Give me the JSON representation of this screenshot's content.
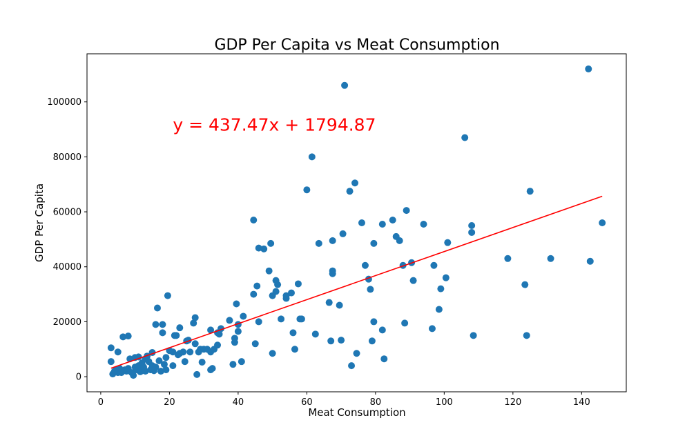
{
  "chart_data": {
    "type": "scatter",
    "title": "GDP Per Capita vs Meat Consumption",
    "xlabel": "Meat Consumption",
    "ylabel": "GDP Per Capita",
    "xlim": [
      -4,
      153
    ],
    "ylim": [
      -5500,
      117500
    ],
    "xticks": [
      0,
      20,
      40,
      60,
      80,
      100,
      120,
      140
    ],
    "yticks": [
      0,
      20000,
      40000,
      60000,
      80000,
      100000
    ],
    "grid": false,
    "legend": "none",
    "point_color": "#1f77b4",
    "line_color": "#ff0000",
    "annotation": {
      "text": "y = 437.47x + 1794.87",
      "color": "#ff0000",
      "x": 21,
      "y": 89500
    },
    "regression": {
      "slope": 437.47,
      "intercept": 1794.87,
      "x_range": [
        3,
        146
      ]
    },
    "points": [
      [
        3,
        10500
      ],
      [
        3,
        5500
      ],
      [
        3.5,
        1000
      ],
      [
        4,
        2000
      ],
      [
        4.5,
        2500
      ],
      [
        5,
        1500
      ],
      [
        5,
        9000
      ],
      [
        5.5,
        3000
      ],
      [
        6,
        1500
      ],
      [
        6.5,
        14500
      ],
      [
        7,
        2500
      ],
      [
        7.5,
        2000
      ],
      [
        8,
        3000
      ],
      [
        8,
        14800
      ],
      [
        8.5,
        6500
      ],
      [
        9,
        1500
      ],
      [
        9.5,
        500
      ],
      [
        10,
        3500
      ],
      [
        10,
        7000
      ],
      [
        10.5,
        2500
      ],
      [
        11,
        7200
      ],
      [
        11,
        4000
      ],
      [
        11.5,
        1800
      ],
      [
        12,
        5000
      ],
      [
        12.5,
        3500
      ],
      [
        13,
        6500
      ],
      [
        13,
        2000
      ],
      [
        13.5,
        7500
      ],
      [
        14,
        5500
      ],
      [
        14.5,
        2500
      ],
      [
        15,
        8800
      ],
      [
        15,
        4000
      ],
      [
        15.5,
        2200
      ],
      [
        16,
        3500
      ],
      [
        16,
        19000
      ],
      [
        16.5,
        25000
      ],
      [
        17,
        5800
      ],
      [
        17.5,
        2000
      ],
      [
        18,
        19000
      ],
      [
        18,
        16000
      ],
      [
        18.5,
        4500
      ],
      [
        19,
        7000
      ],
      [
        19,
        2500
      ],
      [
        19.5,
        29500
      ],
      [
        20,
        9500
      ],
      [
        21,
        4000
      ],
      [
        21,
        9000
      ],
      [
        21.5,
        15000
      ],
      [
        22,
        15000
      ],
      [
        22.5,
        8000
      ],
      [
        23,
        17800
      ],
      [
        23,
        8500
      ],
      [
        24,
        9000
      ],
      [
        24.5,
        5500
      ],
      [
        25,
        13000
      ],
      [
        25.5,
        13300
      ],
      [
        26,
        9000
      ],
      [
        27,
        19500
      ],
      [
        27.5,
        21500
      ],
      [
        27.5,
        12000
      ],
      [
        28,
        800
      ],
      [
        28.5,
        9000
      ],
      [
        29,
        10000
      ],
      [
        29.5,
        5300
      ],
      [
        30,
        10000
      ],
      [
        31,
        10000
      ],
      [
        32,
        9000
      ],
      [
        32,
        17000
      ],
      [
        32,
        2500
      ],
      [
        32.5,
        3000
      ],
      [
        33,
        10000
      ],
      [
        34,
        11500
      ],
      [
        34,
        16000
      ],
      [
        34.5,
        15500
      ],
      [
        35,
        17500
      ],
      [
        37.5,
        20500
      ],
      [
        38.5,
        4500
      ],
      [
        39,
        14000
      ],
      [
        39,
        12500
      ],
      [
        39.5,
        26500
      ],
      [
        40,
        16500
      ],
      [
        40,
        19000
      ],
      [
        41,
        5500
      ],
      [
        41.5,
        22000
      ],
      [
        44.5,
        57000
      ],
      [
        44.5,
        30000
      ],
      [
        45,
        12000
      ],
      [
        45.5,
        33000
      ],
      [
        46,
        46800
      ],
      [
        46,
        20000
      ],
      [
        47.5,
        46500
      ],
      [
        49,
        38500
      ],
      [
        49.5,
        48500
      ],
      [
        50,
        29500
      ],
      [
        50,
        8500
      ],
      [
        51,
        35000
      ],
      [
        51,
        31000
      ],
      [
        51.5,
        33500
      ],
      [
        52.5,
        21000
      ],
      [
        54,
        28500
      ],
      [
        54,
        29500
      ],
      [
        55.5,
        30500
      ],
      [
        56,
        16000
      ],
      [
        56.5,
        10000
      ],
      [
        57.5,
        33800
      ],
      [
        58,
        21000
      ],
      [
        58.5,
        21000
      ],
      [
        60,
        68000
      ],
      [
        61.5,
        80000
      ],
      [
        62.5,
        15500
      ],
      [
        63.5,
        48500
      ],
      [
        66.5,
        27000
      ],
      [
        67,
        13000
      ],
      [
        67.5,
        49500
      ],
      [
        67.5,
        38500
      ],
      [
        67.5,
        37500
      ],
      [
        69.5,
        26000
      ],
      [
        70,
        13300
      ],
      [
        70.5,
        52000
      ],
      [
        71,
        106000
      ],
      [
        72.5,
        67500
      ],
      [
        73,
        4000
      ],
      [
        74,
        70500
      ],
      [
        74.5,
        8500
      ],
      [
        76,
        56000
      ],
      [
        77,
        40500
      ],
      [
        78,
        35500
      ],
      [
        78.5,
        31800
      ],
      [
        79,
        13000
      ],
      [
        79.5,
        20000
      ],
      [
        79.5,
        48500
      ],
      [
        82,
        55500
      ],
      [
        82,
        17000
      ],
      [
        82.5,
        6500
      ],
      [
        85,
        57000
      ],
      [
        86,
        51000
      ],
      [
        87,
        49500
      ],
      [
        88,
        40500
      ],
      [
        88.5,
        19500
      ],
      [
        89,
        60500
      ],
      [
        90.5,
        41500
      ],
      [
        91,
        35000
      ],
      [
        94,
        55500
      ],
      [
        96.5,
        17500
      ],
      [
        97,
        40500
      ],
      [
        98.5,
        24500
      ],
      [
        99,
        32000
      ],
      [
        100.5,
        36000
      ],
      [
        101,
        48800
      ],
      [
        106,
        87000
      ],
      [
        108,
        52500
      ],
      [
        108,
        55000
      ],
      [
        108.5,
        15000
      ],
      [
        118.5,
        43000
      ],
      [
        123.5,
        33500
      ],
      [
        124,
        15000
      ],
      [
        125,
        67500
      ],
      [
        131,
        43000
      ],
      [
        142,
        112000
      ],
      [
        142.5,
        42000
      ],
      [
        146,
        56000
      ]
    ]
  }
}
